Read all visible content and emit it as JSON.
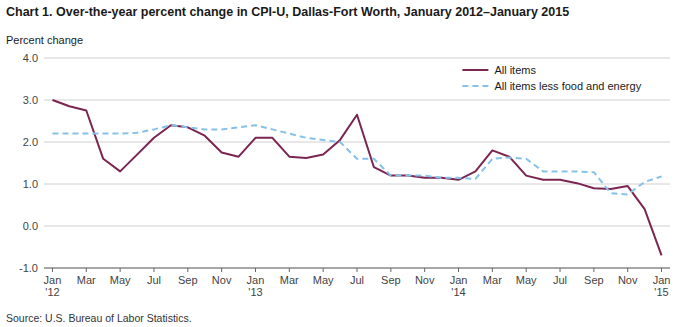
{
  "chart_data": {
    "type": "line",
    "title": "Chart 1. Over-the-year percent change in CPI-U, Dallas-Fort Worth, January 2012–January 2015",
    "ylabel": "Percent change",
    "source": "Source: U.S. Bureau of Labor Statistics.",
    "categories": [
      "Jan\n'12",
      null,
      "Mar",
      null,
      "May",
      null,
      "Jul",
      null,
      "Sep",
      null,
      "Nov",
      null,
      "Jan\n'13",
      null,
      "Mar",
      null,
      "May",
      null,
      "Jul",
      null,
      "Sep",
      null,
      "Nov",
      null,
      "Jan\n'14",
      null,
      "Mar",
      null,
      "May",
      null,
      "Jul",
      null,
      "Sep",
      null,
      "Nov",
      null,
      "Jan\n'15"
    ],
    "series": [
      {
        "name": "All items",
        "color": "#7B2552",
        "line_style": "solid",
        "values": [
          3.0,
          2.85,
          2.75,
          1.6,
          1.3,
          1.7,
          2.1,
          2.4,
          2.35,
          2.15,
          1.75,
          1.65,
          2.1,
          2.1,
          1.65,
          1.62,
          1.7,
          2.05,
          2.65,
          1.4,
          1.2,
          1.2,
          1.15,
          1.15,
          1.1,
          1.3,
          1.8,
          1.65,
          1.2,
          1.1,
          1.1,
          1.02,
          0.9,
          0.88,
          0.95,
          0.4,
          -0.7
        ]
      },
      {
        "name": "All items less food and energy",
        "color": "#85C1E9",
        "line_style": "dashed",
        "values": [
          2.2,
          2.2,
          2.2,
          2.2,
          2.2,
          2.22,
          2.3,
          2.4,
          2.35,
          2.3,
          2.3,
          2.35,
          2.4,
          2.3,
          2.2,
          2.1,
          2.05,
          2.0,
          1.6,
          1.6,
          1.2,
          1.2,
          1.2,
          1.15,
          1.15,
          1.12,
          1.6,
          1.63,
          1.6,
          1.3,
          1.3,
          1.3,
          1.28,
          0.78,
          0.75,
          1.05,
          1.18
        ]
      }
    ],
    "ylim": [
      -1.0,
      4.0
    ],
    "yticks": [
      {
        "value": -1.0,
        "label": "-1.0"
      },
      {
        "value": 0.0,
        "label": "0.0"
      },
      {
        "value": 1.0,
        "label": "1.0"
      },
      {
        "value": 2.0,
        "label": "2.0"
      },
      {
        "value": 3.0,
        "label": "3.0"
      },
      {
        "value": 4.0,
        "label": "4.0"
      }
    ],
    "grid": true,
    "legend": "upper right"
  }
}
